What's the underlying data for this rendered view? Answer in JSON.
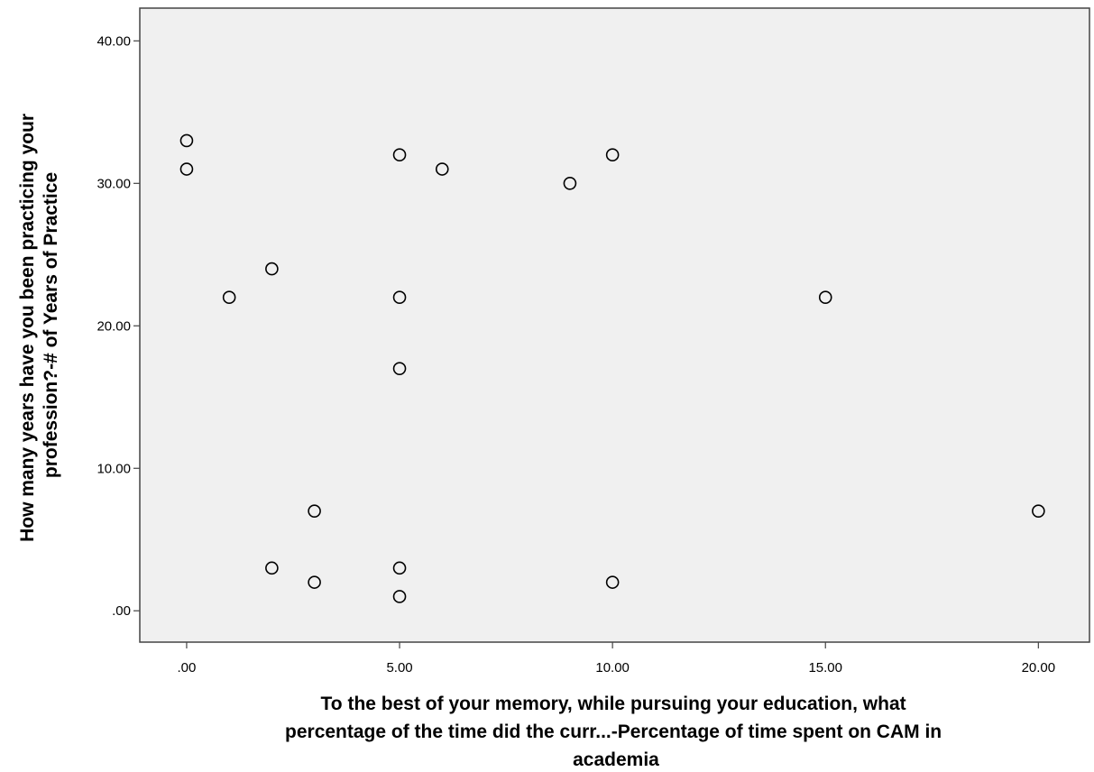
{
  "chart_data": {
    "type": "scatter",
    "title": "",
    "xlabel_lines": [
      "To the best of your memory, while pursuing your education, what",
      "percentage of the time did the curr...-Percentage of time spent on CAM in",
      "academia"
    ],
    "ylabel_lines": [
      "How many years have you been practicing your",
      "profession?-# of Years of Practice"
    ],
    "xlim": [
      -1.1,
      21.2
    ],
    "ylim": [
      -2.2,
      42.3
    ],
    "xticks": [
      0,
      5,
      10,
      15,
      20
    ],
    "xtick_labels": [
      ".00",
      "5.00",
      "10.00",
      "15.00",
      "20.00"
    ],
    "yticks": [
      0,
      10,
      20,
      30,
      40
    ],
    "ytick_labels": [
      ".00",
      "10.00",
      "20.00",
      "30.00",
      "40.00"
    ],
    "grid": false,
    "marker": "open-circle",
    "points": [
      {
        "x": 0,
        "y": 33
      },
      {
        "x": 0,
        "y": 31
      },
      {
        "x": 1,
        "y": 22
      },
      {
        "x": 2,
        "y": 24
      },
      {
        "x": 2,
        "y": 3
      },
      {
        "x": 3,
        "y": 7
      },
      {
        "x": 3,
        "y": 2
      },
      {
        "x": 5,
        "y": 32
      },
      {
        "x": 5,
        "y": 22
      },
      {
        "x": 5,
        "y": 17
      },
      {
        "x": 5,
        "y": 3
      },
      {
        "x": 5,
        "y": 1
      },
      {
        "x": 6,
        "y": 31
      },
      {
        "x": 9,
        "y": 30
      },
      {
        "x": 10,
        "y": 32
      },
      {
        "x": 10,
        "y": 2
      },
      {
        "x": 15,
        "y": 22
      },
      {
        "x": 20,
        "y": 7
      }
    ],
    "colors": {
      "plot_background": "#f0f0f0",
      "frame": "#444444",
      "marker_stroke": "#000000",
      "text": "#000000"
    }
  }
}
